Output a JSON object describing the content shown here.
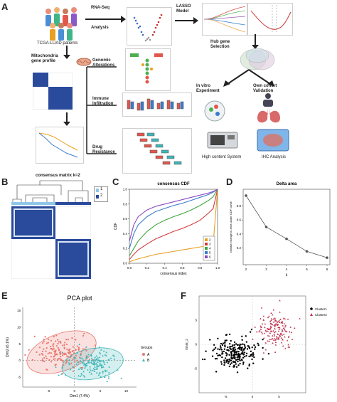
{
  "panels": {
    "A": {
      "label": "A",
      "patients": "TCGA-LUAD patients",
      "rnaseq": [
        "RNA-Seq",
        "Analysis"
      ],
      "lasso": [
        "LASSO",
        "Model"
      ],
      "mito": [
        "Mitochondria",
        "gene profile"
      ],
      "genomic": [
        "Genomic",
        "Alterations"
      ],
      "immune": [
        "Immune",
        "Infiltration"
      ],
      "drug": [
        "Drug",
        "Resistance"
      ],
      "hub": [
        "Hub gene",
        "Selection"
      ],
      "invitro": [
        "In vitro",
        "Experiment"
      ],
      "cohort": [
        "Own cohort",
        "Validation"
      ],
      "hcs": "High content System",
      "ihc": "IHC Analysis"
    },
    "B": {
      "label": "B",
      "title": "consensus matrix k=2",
      "legend": [
        "1",
        "2"
      ]
    },
    "C": {
      "label": "C"
    },
    "D": {
      "label": "D"
    },
    "E": {
      "label": "E",
      "legend_title": "Groups",
      "legend": [
        "A",
        "B"
      ]
    },
    "F": {
      "label": "F"
    }
  },
  "colors": {
    "heatmap_blue": "#2a4a9c",
    "group_a": "#e8776f",
    "group_b": "#3fb5b8",
    "cluster1": "#000000",
    "cluster2": "#c0304b"
  },
  "chart_data": [
    {
      "panel": "C",
      "type": "line",
      "title": "consensus CDF",
      "xlabel": "consensus index",
      "ylabel": "CDF",
      "xlim": [
        0,
        1
      ],
      "ylim": [
        0,
        1
      ],
      "x": [
        0,
        0.05,
        0.1,
        0.2,
        0.3,
        0.4,
        0.5,
        0.6,
        0.7,
        0.8,
        0.9,
        0.95,
        1.0
      ],
      "series": [
        {
          "name": "2",
          "color": "#e8a020",
          "values": [
            0.02,
            0.04,
            0.06,
            0.09,
            0.12,
            0.14,
            0.16,
            0.18,
            0.2,
            0.22,
            0.24,
            0.25,
            1.0
          ]
        },
        {
          "name": "3",
          "color": "#d23b3b",
          "values": [
            0.05,
            0.12,
            0.18,
            0.26,
            0.33,
            0.38,
            0.43,
            0.47,
            0.52,
            0.58,
            0.68,
            0.74,
            1.0
          ]
        },
        {
          "name": "4",
          "color": "#3fa33f",
          "values": [
            0.1,
            0.2,
            0.3,
            0.43,
            0.52,
            0.58,
            0.63,
            0.67,
            0.72,
            0.78,
            0.85,
            0.9,
            1.0
          ]
        },
        {
          "name": "5",
          "color": "#3a7bd0",
          "values": [
            0.2,
            0.4,
            0.52,
            0.63,
            0.7,
            0.74,
            0.78,
            0.81,
            0.85,
            0.89,
            0.93,
            0.96,
            1.0
          ]
        },
        {
          "name": "6",
          "color": "#8a4ac2",
          "values": [
            0.3,
            0.52,
            0.63,
            0.72,
            0.77,
            0.8,
            0.83,
            0.86,
            0.89,
            0.92,
            0.95,
            0.97,
            1.0
          ]
        }
      ],
      "xticks": [
        "0.0",
        "0.2",
        "0.4",
        "0.6",
        "0.8",
        "1.0"
      ],
      "yticks": [
        "0.0",
        "0.2",
        "0.4",
        "0.6",
        "0.8",
        "1.0"
      ],
      "legend_position": "bottom-right"
    },
    {
      "panel": "D",
      "type": "line",
      "title": "Delta area",
      "xlabel": "k",
      "ylabel": "relative change in area under CDF curve",
      "x": [
        2,
        3,
        4,
        5,
        6
      ],
      "values": [
        0.95,
        0.5,
        0.33,
        0.15,
        0.06
      ],
      "xlim": [
        2,
        6
      ],
      "ylim": [
        0,
        1.0
      ],
      "xticks": [
        "2",
        "3",
        "4",
        "5",
        "6"
      ],
      "yticks": [
        "0.2",
        "0.4",
        "0.6",
        "0.8"
      ]
    },
    {
      "panel": "E",
      "type": "scatter",
      "title": "PCA plot",
      "xlabel": "Dim1 (7.4%)",
      "ylabel": "Dim2 (6.1%)",
      "xticks": [
        "-5",
        "0",
        "5",
        "10"
      ],
      "yticks": [
        "-5",
        "0",
        "5",
        "10",
        "15"
      ],
      "series": [
        {
          "name": "A",
          "center": [
            -2.5,
            2.5
          ],
          "spread": [
            3.2,
            3.0
          ],
          "ellipse": {
            "cx": -2.5,
            "cy": 2.5,
            "rx": 7.0,
            "ry": 5.6,
            "angle": -20
          }
        },
        {
          "name": "B",
          "center": [
            3.5,
            -1.0
          ],
          "spread": [
            2.8,
            2.5
          ],
          "ellipse": {
            "cx": 3.5,
            "cy": -1.0,
            "rx": 6.0,
            "ry": 4.6,
            "angle": -10
          }
        }
      ]
    },
    {
      "panel": "F",
      "type": "scatter",
      "title": "",
      "xlabel": "",
      "ylabel": "tSNE_2",
      "xticks": [
        "-5",
        "0",
        "5"
      ],
      "yticks": [
        "-5",
        "0",
        "5"
      ],
      "legend": [
        "Cluster1",
        "Cluster2"
      ],
      "legend_position": "top-right",
      "series": [
        {
          "name": "Cluster1",
          "center": [
            -3,
            -1.5
          ],
          "spread": [
            2.8,
            2.2
          ]
        },
        {
          "name": "Cluster2",
          "center": [
            4.5,
            3.0
          ],
          "spread": [
            2.2,
            2.4
          ]
        }
      ]
    }
  ]
}
